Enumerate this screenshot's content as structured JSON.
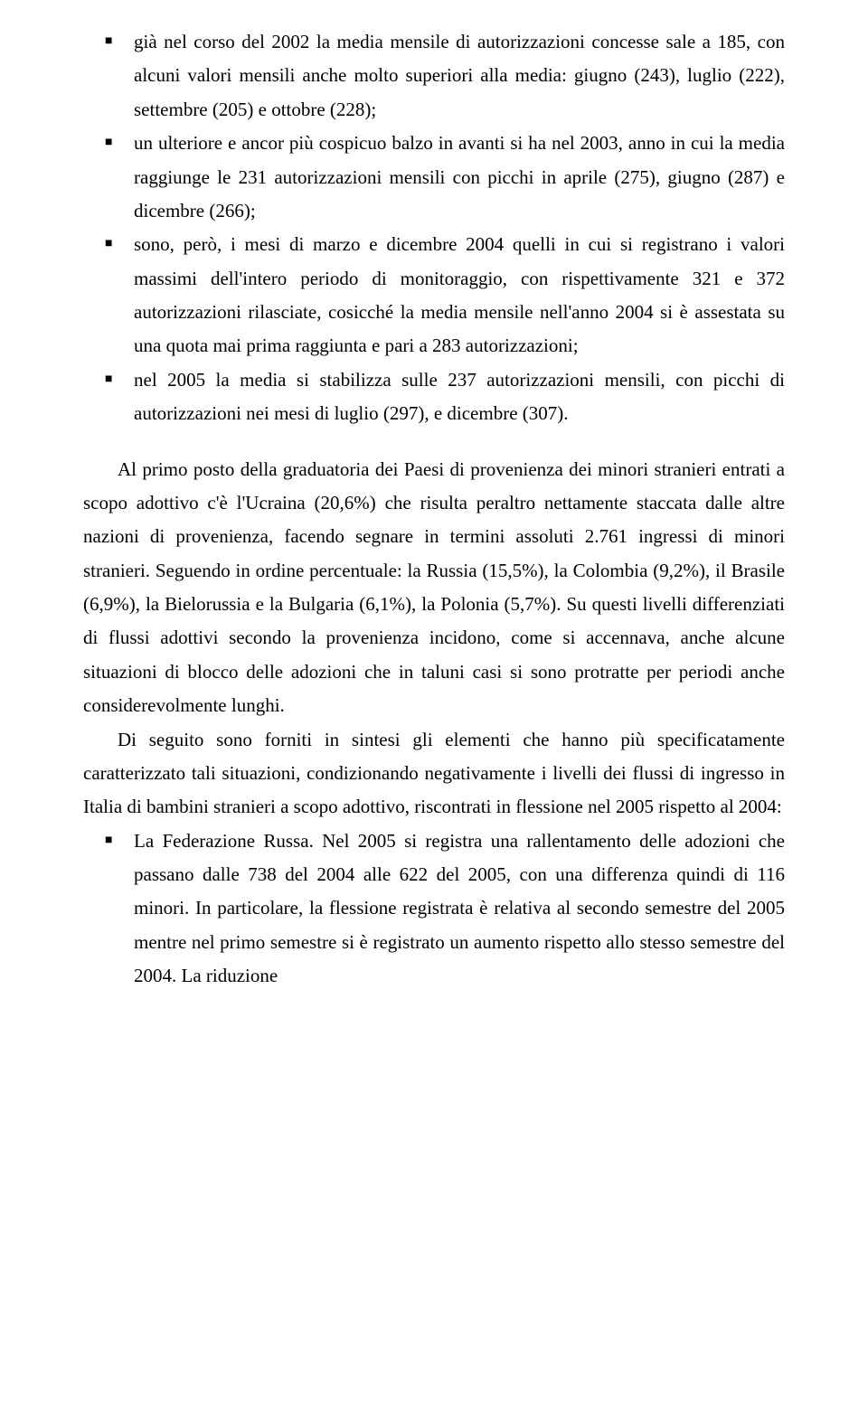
{
  "bullets1": [
    "già nel corso del 2002 la media mensile di autorizzazioni concesse sale a 185, con alcuni valori mensili anche molto superiori alla media: giugno (243), luglio (222), settembre (205) e ottobre (228);",
    "un ulteriore e ancor più cospicuo balzo in avanti si ha nel 2003, anno in cui la media raggiunge le 231 autorizzazioni mensili con picchi in aprile (275), giugno (287) e dicembre (266);",
    "sono, però, i mesi di marzo e dicembre 2004 quelli in cui si registrano i valori massimi dell'intero periodo di monitoraggio, con rispettivamente 321 e 372 autorizzazioni rilasciate, cosicché la media mensile nell'anno 2004 si è assestata su una quota mai prima raggiunta e pari a 283 autorizzazioni;",
    "nel 2005 la media si stabilizza sulle 237 autorizzazioni mensili, con picchi di autorizzazioni nei mesi di luglio (297), e dicembre (307)."
  ],
  "para1": "Al primo posto della graduatoria dei Paesi di provenienza dei minori stranieri entrati a scopo adottivo c'è l'Ucraina (20,6%) che risulta peraltro nettamente staccata dalle altre nazioni di provenienza, facendo segnare in termini assoluti 2.761 ingressi di minori stranieri. Seguendo in ordine percentuale: la Russia (15,5%), la Colombia (9,2%), il Brasile (6,9%), la Bielorussia e la Bulgaria (6,1%), la Polonia (5,7%). Su questi livelli differenziati di flussi adottivi secondo la provenienza incidono, come si accennava, anche alcune situazioni di blocco delle adozioni che in taluni casi si sono protratte per periodi anche considerevolmente lunghi.",
  "para2": "Di seguito sono forniti in sintesi gli elementi che hanno più specificatamente caratterizzato tali situazioni, condizionando negativamente i livelli dei flussi di ingresso in Italia di bambini stranieri a scopo adottivo, riscontrati in flessione nel 2005 rispetto al 2004:",
  "bullets2": [
    "La Federazione Russa. Nel 2005 si registra una rallentamento delle adozioni che passano dalle 738 del 2004 alle 622 del 2005, con una differenza quindi di 116 minori. In particolare, la flessione registrata è relativa al secondo semestre del 2005 mentre nel primo semestre si è registrato un aumento rispetto allo stesso semestre del 2004. La riduzione"
  ]
}
